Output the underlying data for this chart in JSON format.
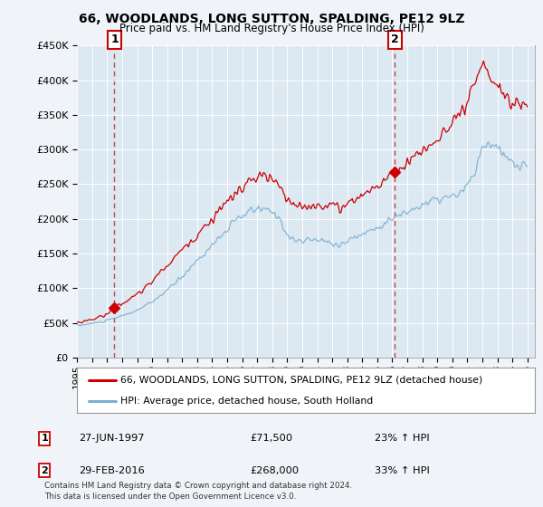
{
  "title": "66, WOODLANDS, LONG SUTTON, SPALDING, PE12 9LZ",
  "subtitle": "Price paid vs. HM Land Registry's House Price Index (HPI)",
  "ylim": [
    0,
    450000
  ],
  "yticks": [
    0,
    50000,
    100000,
    150000,
    200000,
    250000,
    300000,
    350000,
    400000,
    450000
  ],
  "ytick_labels": [
    "£0",
    "£50K",
    "£100K",
    "£150K",
    "£200K",
    "£250K",
    "£300K",
    "£350K",
    "£400K",
    "£450K"
  ],
  "xlim_start": 1995.0,
  "xlim_end": 2025.5,
  "xtick_years": [
    1995,
    1996,
    1997,
    1998,
    1999,
    2000,
    2001,
    2002,
    2003,
    2004,
    2005,
    2006,
    2007,
    2008,
    2009,
    2010,
    2011,
    2012,
    2013,
    2014,
    2015,
    2016,
    2017,
    2018,
    2019,
    2020,
    2021,
    2022,
    2023,
    2024,
    2025
  ],
  "property_color": "#cc0000",
  "hpi_color": "#7ab0d4",
  "sale1_x": 1997.49,
  "sale1_y": 71500,
  "sale2_x": 2016.16,
  "sale2_y": 268000,
  "legend_property": "66, WOODLANDS, LONG SUTTON, SPALDING, PE12 9LZ (detached house)",
  "legend_hpi": "HPI: Average price, detached house, South Holland",
  "note1_label": "27-JUN-1997",
  "note1_price": "£71,500",
  "note1_hpi": "23% ↑ HPI",
  "note2_label": "29-FEB-2016",
  "note2_price": "£268,000",
  "note2_hpi": "33% ↑ HPI",
  "footer": "Contains HM Land Registry data © Crown copyright and database right 2024.\nThis data is licensed under the Open Government Licence v3.0.",
  "background_color": "#f0f4f8",
  "plot_bg": "#dce8f2"
}
